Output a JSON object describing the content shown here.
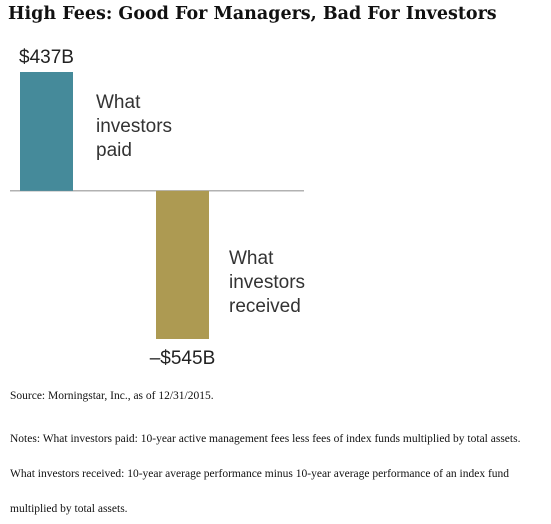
{
  "title": "High Fees: Good For Managers, Bad For Investors",
  "chart_data": {
    "type": "bar",
    "categories": [
      "What investors paid",
      "What investors received"
    ],
    "category_lines": [
      [
        "What",
        "investors",
        "paid"
      ],
      [
        "What",
        "investors",
        "received"
      ]
    ],
    "values": [
      437,
      -545
    ],
    "value_labels": [
      "$437B",
      "–$545B"
    ],
    "unit": "billion USD",
    "colors": [
      "#458A9A",
      "#AD9A52"
    ],
    "baseline_color": "#999999",
    "ylim": [
      -545,
      437
    ],
    "grid": false,
    "legend": "none"
  },
  "notes": {
    "source": "Source: Morningstar, Inc., as of 12/31/2015.",
    "note_paid": "Notes: What investors paid: 10-year active management fees less fees of index funds multiplied by total assets.",
    "note_received_1": "What investors received: 10-year average performance minus 10-year average performance of an index fund",
    "note_received_2": "multiplied by total assets."
  }
}
